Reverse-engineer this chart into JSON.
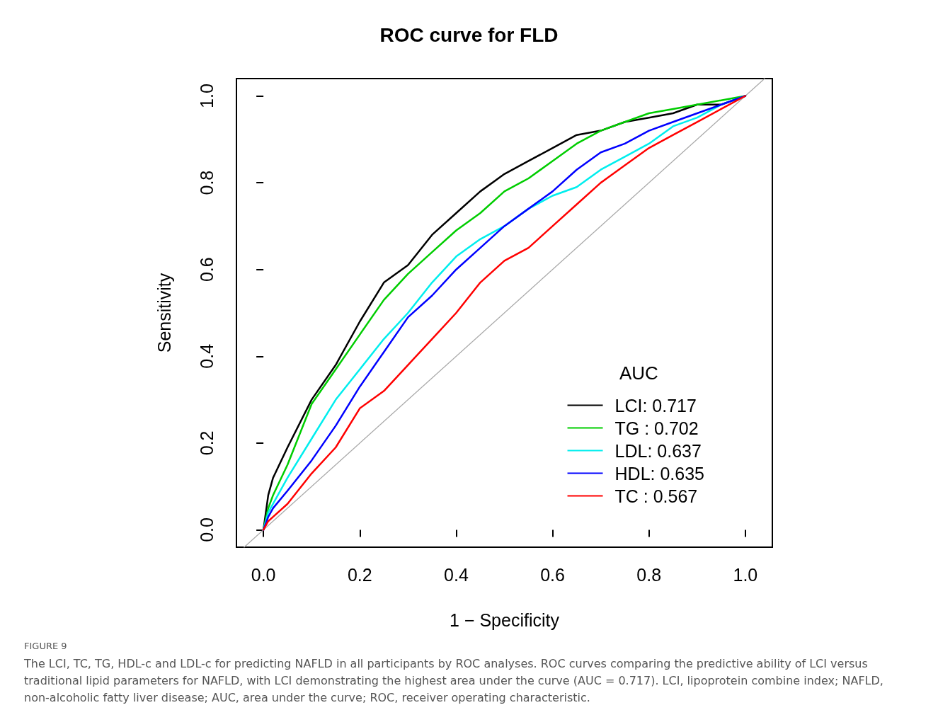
{
  "chart_data": {
    "type": "line",
    "title": "ROC curve for FLD",
    "xlabel": "1 − Specificity",
    "ylabel": "Sensitivity",
    "legend_title": "AUC",
    "legend": "bottom right",
    "grid": false,
    "marker": "none",
    "line_style": "solid",
    "x": [
      0,
      0.01,
      0.02,
      0.05,
      0.1,
      0.15,
      0.2,
      0.25,
      0.3,
      0.35,
      0.4,
      0.45,
      0.5,
      0.55,
      0.6,
      0.65,
      0.7,
      0.75,
      0.8,
      0.85,
      0.9,
      0.95,
      1
    ],
    "xlim": [
      -0.056,
      1.056
    ],
    "ylim": [
      -0.04,
      1.04
    ],
    "xticks": [
      {
        "value": 0,
        "label": "0.0"
      },
      {
        "value": 0.2,
        "label": "0.2"
      },
      {
        "value": 0.4,
        "label": "0.4"
      },
      {
        "value": 0.6,
        "label": "0.6"
      },
      {
        "value": 0.8,
        "label": "0.8"
      },
      {
        "value": 1,
        "label": "1.0"
      }
    ],
    "yticks": [
      {
        "value": 0,
        "label": "0.0"
      },
      {
        "value": 0.2,
        "label": "0.2"
      },
      {
        "value": 0.4,
        "label": "0.4"
      },
      {
        "value": 0.6,
        "label": "0.6"
      },
      {
        "value": 0.8,
        "label": "0.8"
      },
      {
        "value": 1,
        "label": "1.0"
      }
    ],
    "series": [
      {
        "name": "LCI: 0.717",
        "color": "#000000",
        "values": [
          0,
          0.08,
          0.12,
          0.19,
          0.3,
          0.38,
          0.48,
          0.57,
          0.61,
          0.68,
          0.73,
          0.78,
          0.82,
          0.85,
          0.88,
          0.91,
          0.92,
          0.94,
          0.95,
          0.96,
          0.98,
          0.98,
          1
        ]
      },
      {
        "name": "TG : 0.702",
        "color": "#00cd00",
        "values": [
          0,
          0.05,
          0.08,
          0.15,
          0.29,
          0.37,
          0.45,
          0.53,
          0.59,
          0.64,
          0.69,
          0.73,
          0.78,
          0.81,
          0.85,
          0.89,
          0.92,
          0.94,
          0.96,
          0.97,
          0.98,
          0.99,
          1
        ]
      },
      {
        "name": "LDL: 0.637",
        "color": "#00eeee",
        "values": [
          0,
          0.04,
          0.06,
          0.12,
          0.21,
          0.3,
          0.37,
          0.44,
          0.5,
          0.57,
          0.63,
          0.67,
          0.7,
          0.74,
          0.77,
          0.79,
          0.83,
          0.86,
          0.89,
          0.93,
          0.95,
          0.98,
          1
        ]
      },
      {
        "name": "HDL: 0.635",
        "color": "#0000ff",
        "values": [
          0,
          0.03,
          0.05,
          0.09,
          0.16,
          0.24,
          0.33,
          0.41,
          0.49,
          0.54,
          0.6,
          0.65,
          0.7,
          0.74,
          0.78,
          0.83,
          0.87,
          0.89,
          0.92,
          0.94,
          0.96,
          0.98,
          1
        ]
      },
      {
        "name": "TC : 0.567",
        "color": "#ff0000",
        "values": [
          0,
          0.02,
          0.03,
          0.06,
          0.13,
          0.19,
          0.28,
          0.32,
          0.38,
          0.44,
          0.5,
          0.57,
          0.62,
          0.65,
          0.7,
          0.75,
          0.8,
          0.84,
          0.88,
          0.91,
          0.94,
          0.97,
          1
        ]
      },
      {
        "type": "line",
        "color": "#aaaaaa",
        "x": [
          -0.04,
          1.04
        ],
        "values": [
          -0.04,
          1.04
        ]
      }
    ],
    "annotations": [
      "FIGURE 9",
      "The LCI, TC, TG, HDL-c and LDL-c for predicting NAFLD in all participants by ROC analyses. ROC curves comparing the predictive ability of LCI versus traditional lipid parameters for NAFLD, with LCI demonstrating the highest area under the curve (AUC = 0.717). LCI, lipoprotein combine index; NAFLD, non-alcoholic fatty liver disease; AUC, area under the curve; ROC, receiver operating characteristic."
    ]
  }
}
